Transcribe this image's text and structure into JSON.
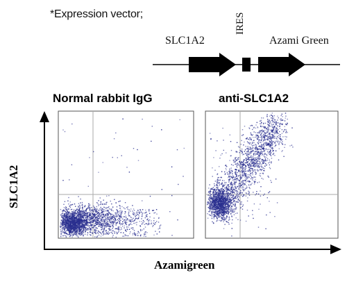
{
  "figure": {
    "vector_label": "*Expression vector;",
    "gene1": "SLC1A2",
    "ires": "IRES",
    "gene2": "Azami Green",
    "panels": [
      {
        "title": "Normal rabbit IgG"
      },
      {
        "title": "anti-SLC1A2"
      }
    ],
    "y_axis_label": "SLC1A2",
    "x_axis_label": "Azamigreen",
    "dot_color": "#2a2f8f"
  }
}
